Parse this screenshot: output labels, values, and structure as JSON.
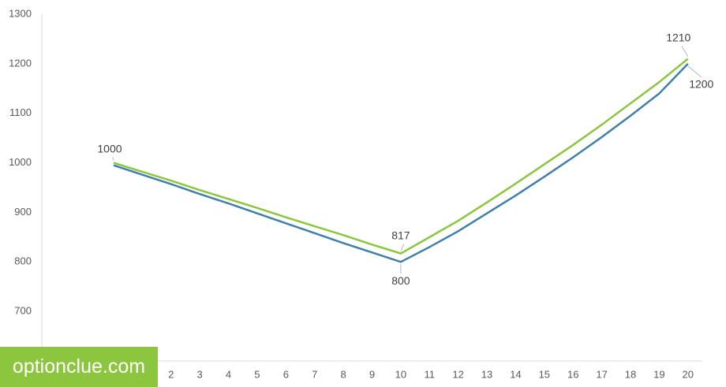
{
  "chart_data": {
    "type": "line",
    "categories": [
      null,
      null,
      null,
      null,
      2,
      3,
      4,
      5,
      6,
      7,
      8,
      9,
      10,
      11,
      12,
      13,
      14,
      15,
      16,
      17,
      18,
      19,
      20
    ],
    "series": [
      {
        "color": "#8cc63e",
        "values": [
          null,
          null,
          1000,
          982,
          964,
          945,
          927,
          909,
          890,
          872,
          854,
          835,
          817,
          850,
          883,
          920,
          958,
          997,
          1036,
          1077,
          1120,
          1163,
          1210
        ]
      },
      {
        "color": "#3f7fa8",
        "values": [
          null,
          null,
          995,
          976,
          957,
          937,
          918,
          898,
          878,
          858,
          838,
          819,
          800,
          830,
          862,
          898,
          934,
          972,
          1011,
          1052,
          1095,
          1140,
          1200
        ]
      }
    ],
    "data_labels": [
      {
        "series": 0,
        "indices": [
          2,
          12,
          22
        ]
      },
      {
        "series": 1,
        "indices": [
          12,
          22
        ]
      }
    ],
    "ylim": [
      600,
      1300
    ],
    "yticks": [
      700,
      800,
      900,
      1000,
      1100,
      1200,
      1300
    ],
    "grid": false
  },
  "watermark": "optionclue.com"
}
